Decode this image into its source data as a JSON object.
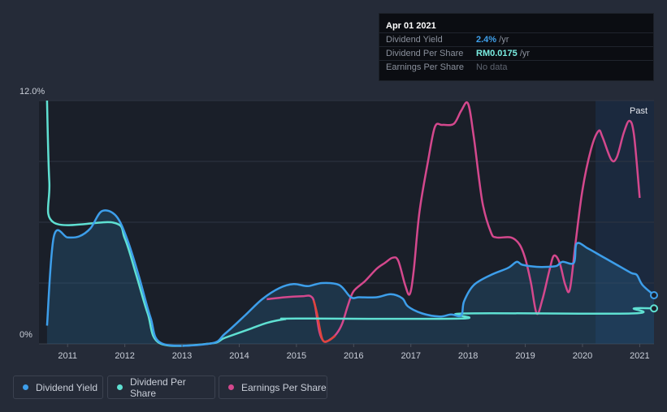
{
  "tooltip": {
    "date": "Apr 01 2021",
    "rows": [
      {
        "label": "Dividend Yield",
        "value": "2.4%",
        "unit": " /yr",
        "color": "#3fa1ec"
      },
      {
        "label": "Dividend Per Share",
        "value": "RM0.0175",
        "unit": " /yr",
        "color": "#79ece0"
      },
      {
        "label": "Earnings Per Share",
        "value": "No data",
        "unit": "",
        "color": "#5e6470"
      }
    ]
  },
  "legend": [
    {
      "label": "Dividend Yield",
      "color": "#3d9eea"
    },
    {
      "label": "Dividend Per Share",
      "color": "#5fe0d2"
    },
    {
      "label": "Earnings Per Share",
      "color": "#d4488d"
    }
  ],
  "chart_data": {
    "type": "line",
    "title": "",
    "y_axis": {
      "range": [
        0,
        12
      ],
      "tick_labels": [
        "12.0%",
        "0%"
      ]
    },
    "x_axis": {
      "range": [
        2010.5,
        2021.25
      ],
      "tick_labels": [
        "2011",
        "2012",
        "2013",
        "2014",
        "2015",
        "2016",
        "2017",
        "2018",
        "2019",
        "2020",
        "2021"
      ]
    },
    "past_label": "Past",
    "series": [
      {
        "name": "Dividend Yield",
        "color": "#3d9eea",
        "points": [
          [
            2010.64,
            0.9
          ],
          [
            2010.76,
            5.3
          ],
          [
            2011.0,
            5.25
          ],
          [
            2011.2,
            5.3
          ],
          [
            2011.4,
            5.7
          ],
          [
            2011.6,
            6.55
          ],
          [
            2011.85,
            6.3
          ],
          [
            2012.05,
            5.1
          ],
          [
            2012.25,
            3.3
          ],
          [
            2012.45,
            1.3
          ],
          [
            2012.65,
            0.02
          ],
          [
            2013.5,
            0.02
          ],
          [
            2013.75,
            0.5
          ],
          [
            2014.1,
            1.4
          ],
          [
            2014.4,
            2.2
          ],
          [
            2014.7,
            2.75
          ],
          [
            2014.95,
            2.95
          ],
          [
            2015.2,
            2.85
          ],
          [
            2015.45,
            3.0
          ],
          [
            2015.75,
            2.9
          ],
          [
            2015.95,
            2.3
          ],
          [
            2016.1,
            2.3
          ],
          [
            2016.4,
            2.3
          ],
          [
            2016.65,
            2.45
          ],
          [
            2016.85,
            2.25
          ],
          [
            2016.95,
            1.85
          ],
          [
            2017.2,
            1.5
          ],
          [
            2017.5,
            1.35
          ],
          [
            2017.7,
            1.45
          ],
          [
            2017.88,
            1.4
          ],
          [
            2017.93,
            2.1
          ],
          [
            2018.1,
            2.9
          ],
          [
            2018.4,
            3.4
          ],
          [
            2018.7,
            3.75
          ],
          [
            2018.85,
            4.05
          ],
          [
            2018.95,
            3.9
          ],
          [
            2019.2,
            3.8
          ],
          [
            2019.4,
            3.8
          ],
          [
            2019.55,
            3.85
          ],
          [
            2019.65,
            4.05
          ],
          [
            2019.85,
            4.0
          ],
          [
            2019.9,
            4.95
          ],
          [
            2020.1,
            4.7
          ],
          [
            2020.35,
            4.3
          ],
          [
            2020.6,
            3.9
          ],
          [
            2020.85,
            3.5
          ],
          [
            2020.95,
            3.4
          ],
          [
            2021.05,
            2.9
          ],
          [
            2021.25,
            2.4
          ]
        ]
      },
      {
        "name": "Dividend Per Share",
        "color": "#5fe0d2",
        "points": [
          [
            2010.64,
            12.0
          ],
          [
            2010.68,
            8.0
          ],
          [
            2010.76,
            5.98
          ],
          [
            2011.8,
            5.98
          ],
          [
            2012.0,
            5.2
          ],
          [
            2012.2,
            3.4
          ],
          [
            2012.4,
            1.5
          ],
          [
            2012.62,
            0.02
          ],
          [
            2013.5,
            0.02
          ],
          [
            2013.75,
            0.3
          ],
          [
            2014.2,
            0.75
          ],
          [
            2014.5,
            1.05
          ],
          [
            2014.8,
            1.22
          ],
          [
            2015.0,
            1.25
          ],
          [
            2017.88,
            1.25
          ],
          [
            2017.92,
            1.5
          ],
          [
            2020.85,
            1.5
          ],
          [
            2020.9,
            1.75
          ],
          [
            2021.25,
            1.75
          ]
        ]
      },
      {
        "name": "Earnings Per Share",
        "color": "#d4488d",
        "segments": [
          [
            [
              2014.48,
              2.2
            ],
            [
              2014.8,
              2.3
            ],
            [
              2015.1,
              2.35
            ],
            [
              2015.25,
              2.35
            ],
            [
              2015.32,
              1.95
            ],
            [
              2015.4,
              0.6
            ],
            [
              2015.48,
              0.12
            ],
            [
              2015.58,
              0.2
            ],
            [
              2015.7,
              0.5
            ],
            [
              2015.8,
              1.0
            ],
            [
              2015.9,
              1.9
            ],
            [
              2016.0,
              2.6
            ],
            [
              2016.2,
              3.1
            ],
            [
              2016.4,
              3.7
            ],
            [
              2016.55,
              4.0
            ],
            [
              2016.68,
              4.25
            ],
            [
              2016.78,
              4.1
            ],
            [
              2016.9,
              2.9
            ],
            [
              2016.98,
              2.45
            ],
            [
              2017.05,
              3.6
            ],
            [
              2017.15,
              6.5
            ],
            [
              2017.3,
              9.0
            ],
            [
              2017.42,
              10.7
            ],
            [
              2017.55,
              10.8
            ],
            [
              2017.75,
              10.85
            ],
            [
              2017.88,
              11.5
            ],
            [
              2018.0,
              11.85
            ],
            [
              2018.1,
              10.2
            ],
            [
              2018.25,
              7.0
            ],
            [
              2018.4,
              5.5
            ],
            [
              2018.5,
              5.25
            ],
            [
              2018.75,
              5.25
            ],
            [
              2018.9,
              4.9
            ],
            [
              2019.0,
              4.2
            ],
            [
              2019.1,
              3.0
            ],
            [
              2019.2,
              1.5
            ],
            [
              2019.3,
              2.2
            ],
            [
              2019.42,
              3.6
            ],
            [
              2019.5,
              4.35
            ],
            [
              2019.6,
              4.0
            ],
            [
              2019.7,
              2.9
            ],
            [
              2019.78,
              2.7
            ],
            [
              2019.88,
              5.0
            ],
            [
              2020.0,
              7.6
            ],
            [
              2020.15,
              9.6
            ],
            [
              2020.28,
              10.5
            ],
            [
              2020.35,
              10.2
            ],
            [
              2020.5,
              9.1
            ],
            [
              2020.6,
              9.2
            ],
            [
              2020.72,
              10.4
            ],
            [
              2020.82,
              11.0
            ],
            [
              2020.9,
              10.3
            ],
            [
              2021.0,
              7.2
            ]
          ],
          [
            [
              2015.3,
              2.15
            ],
            [
              2015.36,
              1.5
            ],
            [
              2015.45,
              0.25
            ],
            [
              2015.55,
              0.15
            ],
            [
              2015.68,
              0.4
            ]
          ]
        ]
      }
    ]
  }
}
